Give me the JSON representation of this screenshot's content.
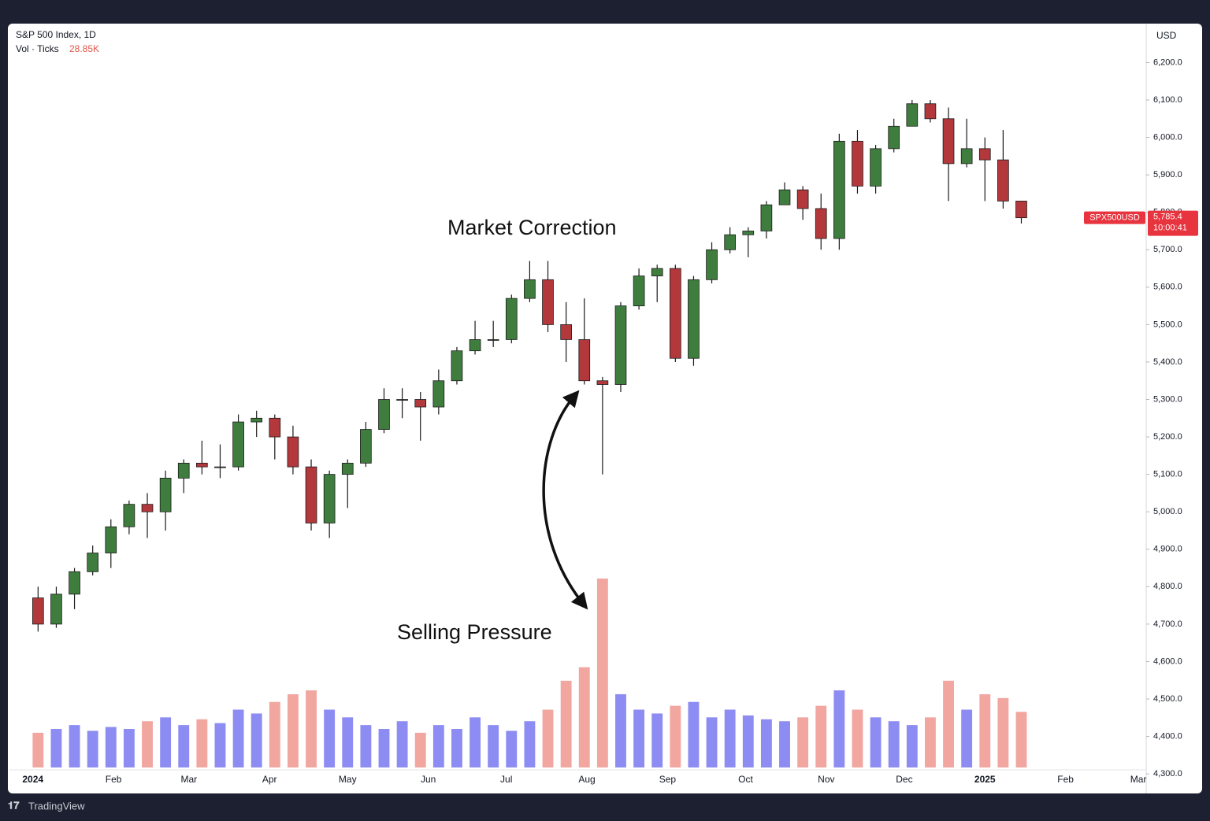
{
  "chart_data": {
    "type": "candlestick",
    "title": "S&P 500 Index, 1D",
    "volume_legend": {
      "label": "Vol · Ticks",
      "value": "28.85K"
    },
    "currency": "USD",
    "brand": "TradingView",
    "annotations": [
      "Market Correction",
      "Selling Pressure"
    ],
    "price_label": {
      "symbol": "SPX500USD",
      "value": 5785.4,
      "label": "5,785.4",
      "countdown": "10:00:41"
    },
    "up_color": "#3f7d3f",
    "down_color": "#b3383c",
    "volume_up_color": "#8c8cf2",
    "volume_down_color": "#f2a6a0",
    "x": [
      2,
      9,
      16,
      23,
      30,
      37,
      44,
      51,
      58,
      65,
      72,
      79,
      86,
      93,
      100,
      107,
      114,
      121,
      128,
      135,
      142,
      149,
      156,
      163,
      170,
      177,
      184,
      191,
      198,
      205,
      212,
      219,
      226,
      233,
      240,
      247,
      254,
      261,
      268,
      275,
      282,
      289,
      296,
      303,
      310,
      317,
      324,
      331,
      338,
      345,
      352,
      359,
      366,
      373,
      380
    ],
    "open": [
      4770,
      4700,
      4780,
      4840,
      4890,
      4960,
      5020,
      5000,
      5090,
      5130,
      5120,
      5120,
      5240,
      5250,
      5200,
      5120,
      4970,
      5100,
      5130,
      5220,
      5300,
      5300,
      5280,
      5350,
      5430,
      5460,
      5460,
      5570,
      5620,
      5500,
      5460,
      5350,
      5340,
      5550,
      5630,
      5650,
      5410,
      5620,
      5700,
      5740,
      5750,
      5820,
      5860,
      5810,
      5730,
      5990,
      5870,
      5970,
      6030,
      6090,
      6050,
      5930,
      5970,
      5940,
      5830
    ],
    "high": [
      4800,
      4800,
      4850,
      4910,
      4980,
      5030,
      5050,
      5110,
      5140,
      5190,
      5180,
      5260,
      5270,
      5260,
      5230,
      5140,
      5110,
      5140,
      5240,
      5330,
      5330,
      5320,
      5380,
      5440,
      5510,
      5510,
      5580,
      5670,
      5670,
      5560,
      5570,
      5360,
      5560,
      5650,
      5660,
      5660,
      5630,
      5720,
      5760,
      5760,
      5830,
      5880,
      5870,
      5850,
      6010,
      6020,
      5980,
      6050,
      6100,
      6100,
      6080,
      6050,
      6000,
      6020,
      5830
    ],
    "low": [
      4680,
      4690,
      4740,
      4830,
      4850,
      4940,
      4930,
      4950,
      5050,
      5100,
      5090,
      5110,
      5200,
      5140,
      5100,
      4950,
      4930,
      5010,
      5120,
      5210,
      5250,
      5190,
      5260,
      5340,
      5420,
      5440,
      5450,
      5560,
      5480,
      5400,
      5340,
      5100,
      5320,
      5540,
      5560,
      5400,
      5390,
      5610,
      5690,
      5680,
      5730,
      5820,
      5780,
      5700,
      5700,
      5850,
      5850,
      5960,
      6030,
      6040,
      5830,
      5920,
      5830,
      5810,
      5770
    ],
    "close": [
      4700,
      4780,
      4840,
      4890,
      4960,
      5020,
      5000,
      5090,
      5130,
      5120,
      5120,
      5240,
      5250,
      5200,
      5120,
      4970,
      5100,
      5130,
      5220,
      5300,
      5300,
      5280,
      5350,
      5430,
      5460,
      5460,
      5570,
      5620,
      5500,
      5460,
      5350,
      5340,
      5550,
      5630,
      5650,
      5410,
      5620,
      5700,
      5740,
      5750,
      5820,
      5860,
      5810,
      5730,
      5990,
      5870,
      5970,
      6030,
      6090,
      6050,
      5930,
      5970,
      5940,
      5830,
      5785.4
    ],
    "volume": [
      18,
      20,
      22,
      19,
      21,
      20,
      24,
      26,
      22,
      25,
      23,
      30,
      28,
      34,
      38,
      40,
      30,
      26,
      22,
      20,
      24,
      18,
      22,
      20,
      26,
      22,
      19,
      24,
      30,
      45,
      52,
      98,
      38,
      30,
      28,
      32,
      34,
      26,
      30,
      27,
      25,
      24,
      26,
      32,
      40,
      30,
      26,
      24,
      22,
      26,
      45,
      30,
      38,
      36,
      28.85
    ],
    "xlim": [
      -9,
      428
    ],
    "ylim": [
      4254,
      6304
    ],
    "xticks": [
      {
        "value": 0,
        "label": "2024"
      },
      {
        "value": 31,
        "label": "Feb"
      },
      {
        "value": 60,
        "label": "Mar"
      },
      {
        "value": 91,
        "label": "Apr"
      },
      {
        "value": 121,
        "label": "May"
      },
      {
        "value": 152,
        "label": "Jun"
      },
      {
        "value": 182,
        "label": "Jul"
      },
      {
        "value": 213,
        "label": "Aug"
      },
      {
        "value": 244,
        "label": "Sep"
      },
      {
        "value": 274,
        "label": "Oct"
      },
      {
        "value": 305,
        "label": "Nov"
      },
      {
        "value": 335,
        "label": "Dec"
      },
      {
        "value": 366,
        "label": "2025"
      },
      {
        "value": 397,
        "label": "Feb"
      },
      {
        "value": 425,
        "label": "Mar"
      }
    ],
    "yticks": [
      {
        "value": 4300,
        "label": "4,300.0"
      },
      {
        "value": 4400,
        "label": "4,400.0"
      },
      {
        "value": 4500,
        "label": "4,500.0"
      },
      {
        "value": 4600,
        "label": "4,600.0"
      },
      {
        "value": 4700,
        "label": "4,700.0"
      },
      {
        "value": 4800,
        "label": "4,800.0"
      },
      {
        "value": 4900,
        "label": "4,900.0"
      },
      {
        "value": 5000,
        "label": "5,000.0"
      },
      {
        "value": 5100,
        "label": "5,100.0"
      },
      {
        "value": 5200,
        "label": "5,200.0"
      },
      {
        "value": 5300,
        "label": "5,300.0"
      },
      {
        "value": 5400,
        "label": "5,400.0"
      },
      {
        "value": 5500,
        "label": "5,500.0"
      },
      {
        "value": 5600,
        "label": "5,600.0"
      },
      {
        "value": 5700,
        "label": "5,700.0"
      },
      {
        "value": 5800,
        "label": "5,800.0"
      },
      {
        "value": 5900,
        "label": "5,900.0"
      },
      {
        "value": 6000,
        "label": "6,000.0"
      },
      {
        "value": 6100,
        "label": "6,100.0"
      },
      {
        "value": 6200,
        "label": "6,200.0"
      }
    ]
  }
}
